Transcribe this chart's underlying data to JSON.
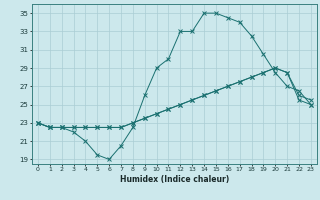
{
  "xlabel": "Humidex (Indice chaleur)",
  "bg_color": "#cce8ec",
  "grid_color": "#aacdd4",
  "line_color": "#1a7070",
  "xlim": [
    -0.5,
    23.5
  ],
  "ylim": [
    18.5,
    36.0
  ],
  "xticks": [
    0,
    1,
    2,
    3,
    4,
    5,
    6,
    7,
    8,
    9,
    10,
    11,
    12,
    13,
    14,
    15,
    16,
    17,
    18,
    19,
    20,
    21,
    22,
    23
  ],
  "yticks": [
    19,
    21,
    23,
    25,
    27,
    29,
    31,
    33,
    35
  ],
  "line1_x": [
    0,
    1,
    2,
    3,
    4,
    5,
    6,
    7,
    8,
    9,
    10,
    11,
    12,
    13,
    14,
    15,
    16,
    17,
    18,
    19,
    20,
    21,
    22,
    23
  ],
  "line1_y": [
    23,
    22.5,
    22.5,
    22,
    21,
    19.5,
    19,
    20.5,
    22.5,
    26,
    29,
    30,
    33,
    33,
    35,
    35,
    34.5,
    34,
    32.5,
    30.5,
    28.5,
    27,
    26.5,
    25
  ],
  "line2_x": [
    0,
    1,
    2,
    3,
    4,
    5,
    6,
    7,
    8,
    9,
    10,
    11,
    12,
    13,
    14,
    15,
    16,
    17,
    18,
    19,
    20,
    21,
    22,
    23
  ],
  "line2_y": [
    23,
    22.5,
    22.5,
    22.5,
    22.5,
    22.5,
    22.5,
    22.5,
    23,
    23.5,
    24,
    24.5,
    25,
    25.5,
    26,
    26.5,
    27,
    27.5,
    28,
    28.5,
    29,
    28.5,
    25.5,
    25
  ],
  "line3_x": [
    0,
    1,
    2,
    3,
    4,
    5,
    6,
    7,
    8,
    9,
    10,
    11,
    12,
    13,
    14,
    15,
    16,
    17,
    18,
    19,
    20,
    21,
    22,
    23
  ],
  "line3_y": [
    23,
    22.5,
    22.5,
    22.5,
    22.5,
    22.5,
    22.5,
    22.5,
    23,
    23.5,
    24,
    24.5,
    25,
    25.5,
    26,
    26.5,
    27,
    27.5,
    28,
    28.5,
    29,
    28.5,
    26,
    25.5
  ]
}
